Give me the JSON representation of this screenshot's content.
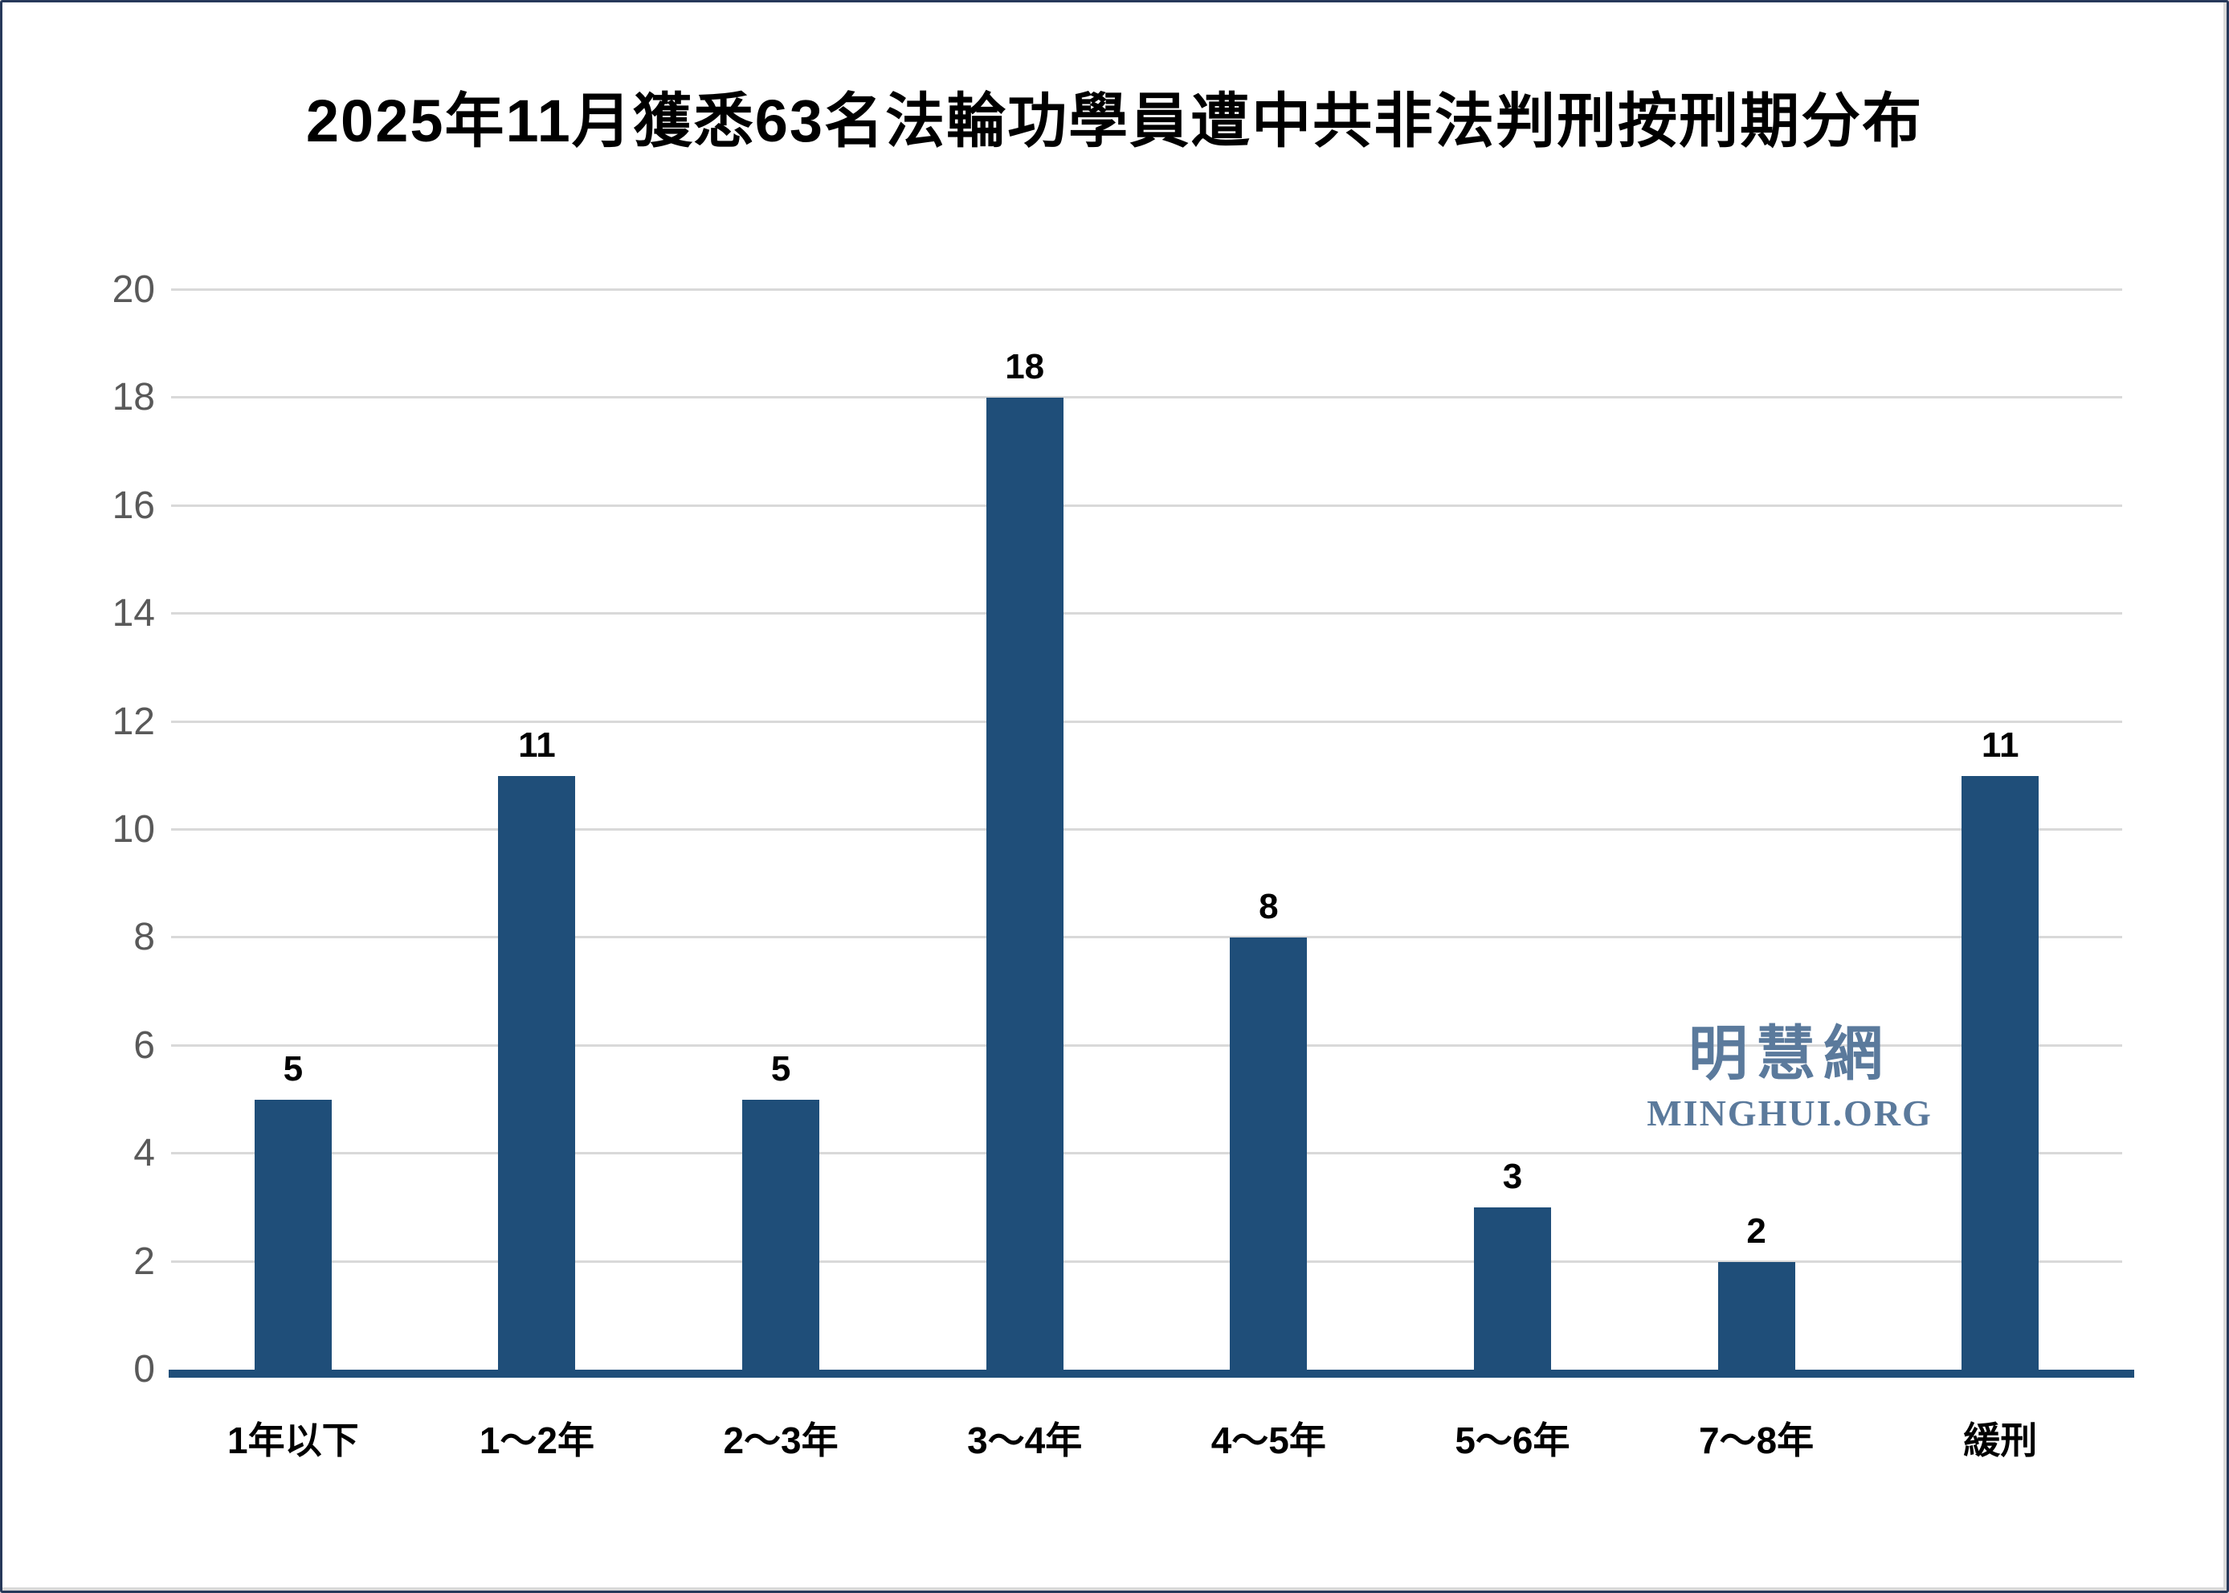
{
  "page": {
    "background": "#ffffff",
    "border_color": "#26395a",
    "inner_shade_color": "#d9d9d9"
  },
  "title": "2025年11月獲悉63名法輪功學員遭中共非法判刑按刑期分布",
  "watermark": {
    "line1": "明慧網",
    "line2": "MINGHUI.ORG",
    "color": "#5b7a9c"
  },
  "chart_data": {
    "type": "bar",
    "title": "2025年11月獲悉63名法輪功學員遭中共非法判刑按刑期分布",
    "categories": [
      "1年以下",
      "1～2年",
      "2～3年",
      "3～4年",
      "4～5年",
      "5～6年",
      "7～8年",
      "緩刑"
    ],
    "values": [
      5,
      11,
      5,
      18,
      8,
      3,
      2,
      11
    ],
    "xlabel": "",
    "ylabel": "",
    "ylim": [
      0,
      20
    ],
    "yticks": [
      0,
      2,
      4,
      6,
      8,
      10,
      12,
      14,
      16,
      18,
      20
    ],
    "grid": true,
    "legend": "none",
    "bar_color": "#1f4e79",
    "baseline_color": "#1f4e79",
    "gridline_color": "#d9d9d9",
    "axis_label_color": "#595959",
    "data_label_color": "#000000"
  }
}
